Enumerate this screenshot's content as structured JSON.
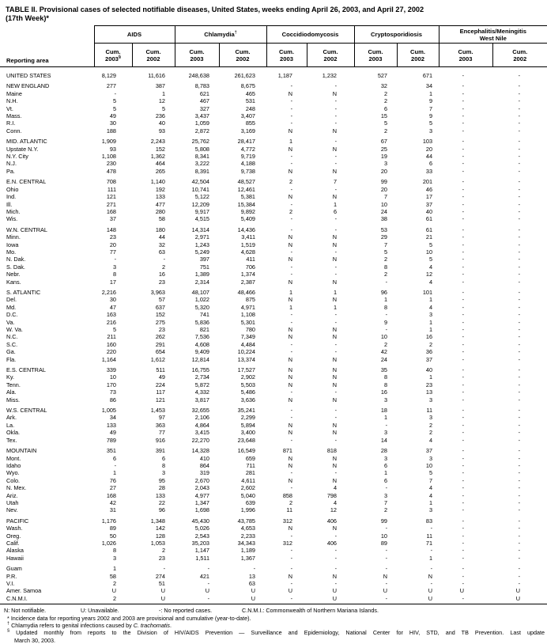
{
  "title": {
    "line1": "TABLE II. Provisional cases of selected notifiable diseases, United States, weeks ending April 26, 2003, and April 27, 2002",
    "line2": "(17th Week)*"
  },
  "header": {
    "reporting_area": "Reporting area",
    "groups": [
      {
        "title": "AIDS",
        "title2": "",
        "sup": "",
        "sub": [
          {
            "t": "Cum.",
            "y": "2003",
            "s": "§"
          },
          {
            "t": "Cum.",
            "y": "2002",
            "s": ""
          }
        ]
      },
      {
        "title": "Chlamydia",
        "title2": "",
        "sup": "†",
        "sub": [
          {
            "t": "Cum.",
            "y": "2003",
            "s": ""
          },
          {
            "t": "Cum.",
            "y": "2002",
            "s": ""
          }
        ]
      },
      {
        "title": "Coccidiodomycosis",
        "title2": "",
        "sup": "",
        "sub": [
          {
            "t": "Cum.",
            "y": "2003",
            "s": ""
          },
          {
            "t": "Cum.",
            "y": "2002",
            "s": ""
          }
        ]
      },
      {
        "title": "Cryptosporidiosis",
        "title2": "",
        "sup": "",
        "sub": [
          {
            "t": "Cum.",
            "y": "2003",
            "s": ""
          },
          {
            "t": "Cum.",
            "y": "2002",
            "s": ""
          }
        ]
      },
      {
        "title": "Encephalitis/Meningitis",
        "title2": "West Nile",
        "sup": "",
        "sub": [
          {
            "t": "Cum.",
            "y": "2003",
            "s": ""
          },
          {
            "t": "Cum.",
            "y": "2002",
            "s": ""
          }
        ]
      }
    ]
  },
  "rows": [
    {
      "n": "UNITED STATES",
      "gap": false,
      "v": [
        "8,129",
        "11,616",
        "248,638",
        "261,623",
        "1,187",
        "1,232",
        "527",
        "671",
        "-",
        "-"
      ]
    },
    {
      "n": "NEW ENGLAND",
      "gap": true,
      "v": [
        "277",
        "387",
        "8,783",
        "8,675",
        "-",
        "-",
        "32",
        "34",
        "-",
        "-"
      ]
    },
    {
      "n": "Maine",
      "gap": false,
      "v": [
        "-",
        "1",
        "621",
        "465",
        "N",
        "N",
        "2",
        "1",
        "-",
        "-"
      ]
    },
    {
      "n": "N.H.",
      "gap": false,
      "v": [
        "5",
        "12",
        "467",
        "531",
        "-",
        "-",
        "2",
        "9",
        "-",
        "-"
      ]
    },
    {
      "n": "Vt.",
      "gap": false,
      "v": [
        "5",
        "5",
        "327",
        "248",
        "-",
        "-",
        "6",
        "7",
        "-",
        "-"
      ]
    },
    {
      "n": "Mass.",
      "gap": false,
      "v": [
        "49",
        "236",
        "3,437",
        "3,407",
        "-",
        "-",
        "15",
        "9",
        "-",
        "-"
      ]
    },
    {
      "n": "R.I.",
      "gap": false,
      "v": [
        "30",
        "40",
        "1,059",
        "855",
        "-",
        "-",
        "5",
        "5",
        "-",
        "-"
      ]
    },
    {
      "n": "Conn.",
      "gap": false,
      "v": [
        "188",
        "93",
        "2,872",
        "3,169",
        "N",
        "N",
        "2",
        "3",
        "-",
        "-"
      ]
    },
    {
      "n": "MID. ATLANTIC",
      "gap": true,
      "v": [
        "1,909",
        "2,243",
        "25,762",
        "28,417",
        "1",
        "-",
        "67",
        "103",
        "-",
        "-"
      ]
    },
    {
      "n": "Upstate N.Y.",
      "gap": false,
      "v": [
        "93",
        "152",
        "5,808",
        "4,772",
        "N",
        "N",
        "25",
        "20",
        "-",
        "-"
      ]
    },
    {
      "n": "N.Y. City",
      "gap": false,
      "v": [
        "1,108",
        "1,362",
        "8,341",
        "9,719",
        "-",
        "-",
        "19",
        "44",
        "-",
        "-"
      ]
    },
    {
      "n": "N.J.",
      "gap": false,
      "v": [
        "230",
        "464",
        "3,222",
        "4,188",
        "-",
        "-",
        "3",
        "6",
        "-",
        "-"
      ]
    },
    {
      "n": "Pa.",
      "gap": false,
      "v": [
        "478",
        "265",
        "8,391",
        "9,738",
        "N",
        "N",
        "20",
        "33",
        "-",
        "-"
      ]
    },
    {
      "n": "E.N. CENTRAL",
      "gap": true,
      "v": [
        "708",
        "1,140",
        "42,504",
        "48,527",
        "2",
        "7",
        "99",
        "201",
        "-",
        "-"
      ]
    },
    {
      "n": "Ohio",
      "gap": false,
      "v": [
        "111",
        "192",
        "10,741",
        "12,461",
        "-",
        "-",
        "20",
        "46",
        "-",
        "-"
      ]
    },
    {
      "n": "Ind.",
      "gap": false,
      "v": [
        "121",
        "133",
        "5,122",
        "5,381",
        "N",
        "N",
        "7",
        "17",
        "-",
        "-"
      ]
    },
    {
      "n": "Ill.",
      "gap": false,
      "v": [
        "271",
        "477",
        "12,209",
        "15,384",
        "-",
        "1",
        "10",
        "37",
        "-",
        "-"
      ]
    },
    {
      "n": "Mich.",
      "gap": false,
      "v": [
        "168",
        "280",
        "9,917",
        "9,892",
        "2",
        "6",
        "24",
        "40",
        "-",
        "-"
      ]
    },
    {
      "n": "Wis.",
      "gap": false,
      "v": [
        "37",
        "58",
        "4,515",
        "5,409",
        "-",
        "-",
        "38",
        "61",
        "-",
        "-"
      ]
    },
    {
      "n": "W.N. CENTRAL",
      "gap": true,
      "v": [
        "148",
        "180",
        "14,314",
        "14,436",
        "-",
        "-",
        "53",
        "61",
        "-",
        "-"
      ]
    },
    {
      "n": "Minn.",
      "gap": false,
      "v": [
        "23",
        "44",
        "2,971",
        "3,411",
        "N",
        "N",
        "29",
        "21",
        "-",
        "-"
      ]
    },
    {
      "n": "Iowa",
      "gap": false,
      "v": [
        "20",
        "32",
        "1,243",
        "1,519",
        "N",
        "N",
        "7",
        "5",
        "-",
        "-"
      ]
    },
    {
      "n": "Mo.",
      "gap": false,
      "v": [
        "77",
        "63",
        "5,249",
        "4,628",
        "-",
        "-",
        "5",
        "10",
        "-",
        "-"
      ]
    },
    {
      "n": "N. Dak.",
      "gap": false,
      "v": [
        "-",
        "-",
        "397",
        "411",
        "N",
        "N",
        "2",
        "5",
        "-",
        "-"
      ]
    },
    {
      "n": "S. Dak.",
      "gap": false,
      "v": [
        "3",
        "2",
        "751",
        "706",
        "-",
        "-",
        "8",
        "4",
        "-",
        "-"
      ]
    },
    {
      "n": "Nebr.",
      "gap": false,
      "v": [
        "8",
        "16",
        "1,389",
        "1,374",
        "-",
        "-",
        "2",
        "12",
        "-",
        "-"
      ]
    },
    {
      "n": "Kans.",
      "gap": false,
      "v": [
        "17",
        "23",
        "2,314",
        "2,387",
        "N",
        "N",
        "-",
        "4",
        "-",
        "-"
      ]
    },
    {
      "n": "S. ATLANTIC",
      "gap": true,
      "v": [
        "2,216",
        "3,963",
        "48,107",
        "48,466",
        "1",
        "1",
        "96",
        "101",
        "-",
        "-"
      ]
    },
    {
      "n": "Del.",
      "gap": false,
      "v": [
        "30",
        "57",
        "1,022",
        "875",
        "N",
        "N",
        "1",
        "1",
        "-",
        "-"
      ]
    },
    {
      "n": "Md.",
      "gap": false,
      "v": [
        "47",
        "637",
        "5,320",
        "4,971",
        "1",
        "1",
        "8",
        "4",
        "-",
        "-"
      ]
    },
    {
      "n": "D.C.",
      "gap": false,
      "v": [
        "163",
        "152",
        "741",
        "1,108",
        "-",
        "-",
        "-",
        "3",
        "-",
        "-"
      ]
    },
    {
      "n": "Va.",
      "gap": false,
      "v": [
        "216",
        "275",
        "5,836",
        "5,301",
        "-",
        "-",
        "9",
        "1",
        "-",
        "-"
      ]
    },
    {
      "n": "W. Va.",
      "gap": false,
      "v": [
        "5",
        "23",
        "821",
        "780",
        "N",
        "N",
        "-",
        "1",
        "-",
        "-"
      ]
    },
    {
      "n": "N.C.",
      "gap": false,
      "v": [
        "211",
        "262",
        "7,536",
        "7,349",
        "N",
        "N",
        "10",
        "16",
        "-",
        "-"
      ]
    },
    {
      "n": "S.C.",
      "gap": false,
      "v": [
        "160",
        "291",
        "4,608",
        "4,484",
        "-",
        "-",
        "2",
        "2",
        "-",
        "-"
      ]
    },
    {
      "n": "Ga.",
      "gap": false,
      "v": [
        "220",
        "654",
        "9,409",
        "10,224",
        "-",
        "-",
        "42",
        "36",
        "-",
        "-"
      ]
    },
    {
      "n": "Fla.",
      "gap": false,
      "v": [
        "1,164",
        "1,612",
        "12,814",
        "13,374",
        "N",
        "N",
        "24",
        "37",
        "-",
        "-"
      ]
    },
    {
      "n": "E.S. CENTRAL",
      "gap": true,
      "v": [
        "339",
        "511",
        "16,755",
        "17,527",
        "N",
        "N",
        "35",
        "40",
        "-",
        "-"
      ]
    },
    {
      "n": "Ky.",
      "gap": false,
      "v": [
        "10",
        "49",
        "2,734",
        "2,902",
        "N",
        "N",
        "8",
        "1",
        "-",
        "-"
      ]
    },
    {
      "n": "Tenn.",
      "gap": false,
      "v": [
        "170",
        "224",
        "5,872",
        "5,503",
        "N",
        "N",
        "8",
        "23",
        "-",
        "-"
      ]
    },
    {
      "n": "Ala.",
      "gap": false,
      "v": [
        "73",
        "117",
        "4,332",
        "5,486",
        "-",
        "-",
        "16",
        "13",
        "-",
        "-"
      ]
    },
    {
      "n": "Miss.",
      "gap": false,
      "v": [
        "86",
        "121",
        "3,817",
        "3,636",
        "N",
        "N",
        "3",
        "3",
        "-",
        "-"
      ]
    },
    {
      "n": "W.S. CENTRAL",
      "gap": true,
      "v": [
        "1,005",
        "1,453",
        "32,655",
        "35,241",
        "-",
        "-",
        "18",
        "11",
        "-",
        "-"
      ]
    },
    {
      "n": "Ark.",
      "gap": false,
      "v": [
        "34",
        "97",
        "2,106",
        "2,299",
        "-",
        "-",
        "1",
        "3",
        "-",
        "-"
      ]
    },
    {
      "n": "La.",
      "gap": false,
      "v": [
        "133",
        "363",
        "4,864",
        "5,894",
        "N",
        "N",
        "-",
        "2",
        "-",
        "-"
      ]
    },
    {
      "n": "Okla.",
      "gap": false,
      "v": [
        "49",
        "77",
        "3,415",
        "3,400",
        "N",
        "N",
        "3",
        "2",
        "-",
        "-"
      ]
    },
    {
      "n": "Tex.",
      "gap": false,
      "v": [
        "789",
        "916",
        "22,270",
        "23,648",
        "-",
        "-",
        "14",
        "4",
        "-",
        "-"
      ]
    },
    {
      "n": "MOUNTAIN",
      "gap": true,
      "v": [
        "351",
        "391",
        "14,328",
        "16,549",
        "871",
        "818",
        "28",
        "37",
        "-",
        "-"
      ]
    },
    {
      "n": "Mont.",
      "gap": false,
      "v": [
        "6",
        "6",
        "410",
        "659",
        "N",
        "N",
        "3",
        "3",
        "-",
        "-"
      ]
    },
    {
      "n": "Idaho",
      "gap": false,
      "v": [
        "-",
        "8",
        "864",
        "711",
        "N",
        "N",
        "6",
        "10",
        "-",
        "-"
      ]
    },
    {
      "n": "Wyo.",
      "gap": false,
      "v": [
        "1",
        "3",
        "319",
        "281",
        "-",
        "-",
        "1",
        "5",
        "-",
        "-"
      ]
    },
    {
      "n": "Colo.",
      "gap": false,
      "v": [
        "76",
        "95",
        "2,670",
        "4,611",
        "N",
        "N",
        "6",
        "7",
        "-",
        "-"
      ]
    },
    {
      "n": "N. Mex.",
      "gap": false,
      "v": [
        "27",
        "28",
        "2,043",
        "2,602",
        "-",
        "4",
        "-",
        "4",
        "-",
        "-"
      ]
    },
    {
      "n": "Ariz.",
      "gap": false,
      "v": [
        "168",
        "133",
        "4,977",
        "5,040",
        "858",
        "798",
        "3",
        "4",
        "-",
        "-"
      ]
    },
    {
      "n": "Utah",
      "gap": false,
      "v": [
        "42",
        "22",
        "1,347",
        "639",
        "2",
        "4",
        "7",
        "1",
        "-",
        "-"
      ]
    },
    {
      "n": "Nev.",
      "gap": false,
      "v": [
        "31",
        "96",
        "1,698",
        "1,996",
        "11",
        "12",
        "2",
        "3",
        "-",
        "-"
      ]
    },
    {
      "n": "PACIFIC",
      "gap": true,
      "v": [
        "1,176",
        "1,348",
        "45,430",
        "43,785",
        "312",
        "406",
        "99",
        "83",
        "-",
        "-"
      ]
    },
    {
      "n": "Wash.",
      "gap": false,
      "v": [
        "89",
        "142",
        "5,026",
        "4,653",
        "N",
        "N",
        "-",
        "-",
        "-",
        "-"
      ]
    },
    {
      "n": "Oreg.",
      "gap": false,
      "v": [
        "50",
        "128",
        "2,543",
        "2,233",
        "-",
        "-",
        "10",
        "11",
        "-",
        "-"
      ]
    },
    {
      "n": "Calif.",
      "gap": false,
      "v": [
        "1,026",
        "1,053",
        "35,203",
        "34,343",
        "312",
        "406",
        "89",
        "71",
        "-",
        "-"
      ]
    },
    {
      "n": "Alaska",
      "gap": false,
      "v": [
        "8",
        "2",
        "1,147",
        "1,189",
        "-",
        "-",
        "-",
        "-",
        "-",
        "-"
      ]
    },
    {
      "n": "Hawaii",
      "gap": false,
      "v": [
        "3",
        "23",
        "1,511",
        "1,367",
        "-",
        "-",
        "-",
        "1",
        "-",
        "-"
      ]
    },
    {
      "n": "Guam",
      "gap": true,
      "v": [
        "1",
        "-",
        "-",
        "-",
        "-",
        "-",
        "-",
        "-",
        "-",
        "-"
      ]
    },
    {
      "n": "P.R.",
      "gap": false,
      "v": [
        "58",
        "274",
        "421",
        "13",
        "N",
        "N",
        "N",
        "N",
        "-",
        "-"
      ]
    },
    {
      "n": "V.I.",
      "gap": false,
      "v": [
        "2",
        "51",
        "-",
        "63",
        "-",
        "-",
        "-",
        "-",
        "-",
        "-"
      ]
    },
    {
      "n": "Amer. Samoa",
      "gap": false,
      "v": [
        "U",
        "U",
        "U",
        "U",
        "U",
        "U",
        "U",
        "U",
        "U",
        "U"
      ]
    },
    {
      "n": "C.N.M.I.",
      "gap": false,
      "v": [
        "2",
        "U",
        "-",
        "U",
        "-",
        "U",
        "-",
        "U",
        "-",
        "U"
      ]
    }
  ],
  "footnotes": {
    "legend": [
      "N: Not notifiable.",
      "U: Unavailable.",
      "-: No reported cases.",
      "C.N.M.I.: Commonwealth of Northern Mariana Islands."
    ],
    "note_star_marker": "*",
    "note_star": "Incidence data for reporting years 2002 and 2003 are provisional and cumulative (year-to-date).",
    "note_dagger_marker": "†",
    "note_dagger_pre": "Chlamydia refers to genital infections caused by ",
    "note_dagger_italic": "C. trachomatis",
    "note_dagger_post": ".",
    "note_section_marker": "§",
    "note_section_line1": "Updated monthly from reports to the Division of HIV/AIDS Prevention — Surveillance and Epidemiology, National Center for HIV, STD, and TB Prevention. Last update",
    "note_section_line2": "March 30, 2003."
  }
}
